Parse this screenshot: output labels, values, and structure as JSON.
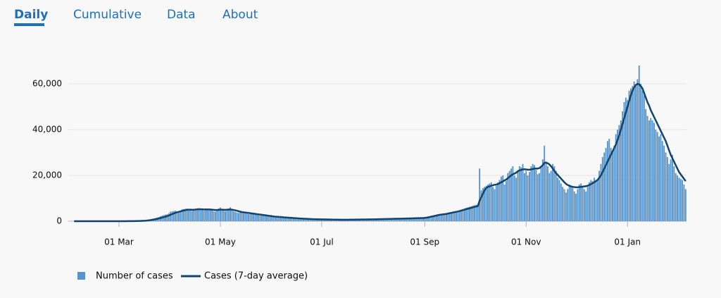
{
  "tabs": [
    "Daily",
    "Cumulative",
    "Data",
    "About"
  ],
  "chart_data": {
    "type": "bar-line",
    "categories": [
      null,
      null,
      null,
      null,
      null,
      null,
      null,
      null,
      null,
      null,
      null,
      null,
      null,
      null,
      null,
      null,
      null,
      null,
      null,
      null,
      null,
      null,
      null,
      null,
      null,
      null,
      null,
      null,
      null,
      null,
      "01 Mar",
      null,
      null,
      null,
      null,
      null,
      null,
      null,
      null,
      null,
      null,
      null,
      null,
      null,
      null,
      null,
      null,
      null,
      null,
      null,
      null,
      null,
      null,
      null,
      null,
      null,
      null,
      null,
      null,
      null,
      null,
      null,
      null,
      null,
      null,
      null,
      null,
      null,
      null,
      null,
      null,
      null,
      null,
      null,
      null,
      null,
      null,
      null,
      null,
      null,
      null,
      null,
      null,
      null,
      null,
      null,
      null,
      null,
      null,
      null,
      null,
      "01 May",
      null,
      null,
      null,
      null,
      null,
      null,
      null,
      null,
      null,
      null,
      null,
      null,
      null,
      null,
      null,
      null,
      null,
      null,
      null,
      null,
      null,
      null,
      null,
      null,
      null,
      null,
      null,
      null,
      null,
      null,
      null,
      null,
      null,
      null,
      null,
      null,
      null,
      null,
      null,
      null,
      null,
      null,
      null,
      null,
      null,
      null,
      null,
      null,
      null,
      null,
      null,
      null,
      null,
      null,
      null,
      null,
      null,
      null,
      null,
      null,
      "01 Jul",
      null,
      null,
      null,
      null,
      null,
      null,
      null,
      null,
      null,
      null,
      null,
      null,
      null,
      null,
      null,
      null,
      null,
      null,
      null,
      null,
      null,
      null,
      null,
      null,
      null,
      null,
      null,
      null,
      null,
      null,
      null,
      null,
      null,
      null,
      null,
      null,
      null,
      null,
      null,
      null,
      null,
      null,
      null,
      null,
      null,
      null,
      null,
      null,
      null,
      null,
      null,
      null,
      null,
      null,
      null,
      null,
      null,
      null,
      null,
      null,
      null,
      "01 Sep",
      null,
      null,
      null,
      null,
      null,
      null,
      null,
      null,
      null,
      null,
      null,
      null,
      null,
      null,
      null,
      null,
      null,
      null,
      null,
      null,
      null,
      null,
      null,
      null,
      null,
      null,
      null,
      null,
      null,
      null,
      null,
      null,
      null,
      null,
      null,
      null,
      null,
      null,
      null,
      null,
      null,
      null,
      null,
      null,
      null,
      null,
      null,
      null,
      null,
      null,
      null,
      null,
      null,
      null,
      null,
      null,
      null,
      null,
      null,
      null,
      "01 Nov",
      null,
      null,
      null,
      null,
      null,
      null,
      null,
      null,
      null,
      null,
      null,
      null,
      null,
      null,
      null,
      null,
      null,
      null,
      null,
      null,
      null,
      null,
      null,
      null,
      null,
      null,
      null,
      null,
      null,
      null,
      null,
      null,
      null,
      null,
      null,
      null,
      null,
      null,
      null,
      null,
      null,
      null,
      null,
      null,
      null,
      null,
      null,
      null,
      null,
      null,
      null,
      null,
      null,
      null,
      null,
      null,
      null,
      null,
      null,
      null,
      "01 Jan",
      null,
      null,
      null,
      null,
      null,
      null,
      null,
      null,
      null,
      null,
      null,
      null,
      null,
      null,
      null,
      null,
      null,
      null,
      null,
      null,
      null,
      null,
      null,
      null,
      null,
      null,
      null,
      null,
      null,
      null,
      null,
      null,
      null,
      null,
      null
    ],
    "series": [
      {
        "name": "Number of cases",
        "color": "#5694ca",
        "kind": "bar",
        "values": [
          2,
          0,
          0,
          0,
          0,
          0,
          0,
          1,
          0,
          0,
          0,
          1,
          0,
          0,
          0,
          0,
          0,
          0,
          0,
          0,
          0,
          0,
          0,
          0,
          3,
          5,
          2,
          5,
          4,
          15,
          12,
          11,
          33,
          39,
          56,
          49,
          68,
          58,
          58,
          59,
          92,
          127,
          228,
          242,
          197,
          304,
          444,
          494,
          720,
          875,
          1043,
          1225,
          1412,
          1601,
          1843,
          2175,
          2460,
          2660,
          2917,
          3020,
          3437,
          4150,
          4340,
          4420,
          4620,
          4280,
          4110,
          4650,
          5200,
          5300,
          5430,
          5500,
          5260,
          4770,
          4540,
          4900,
          5300,
          5530,
          5710,
          5340,
          5120,
          4650,
          5100,
          5320,
          5420,
          5160,
          5000,
          4330,
          4180,
          4980,
          5620,
          6000,
          5300,
          4600,
          4400,
          5450,
          5600,
          6100,
          5200,
          4300,
          4000,
          3800,
          3600,
          4200,
          4300,
          3900,
          3600,
          3300,
          3100,
          3200,
          3500,
          3400,
          3100,
          2900,
          2700,
          2500,
          2800,
          2900,
          2600,
          2300,
          2100,
          2200,
          2100,
          2000,
          1900,
          1800,
          1900,
          1800,
          1700,
          1600,
          1500,
          1600,
          1500,
          1400,
          1300,
          1300,
          1350,
          1250,
          1200,
          1150,
          1100,
          1050,
          1100,
          1000,
          950,
          900,
          950,
          900,
          880,
          850,
          850,
          820,
          800,
          780,
          760,
          740,
          750,
          720,
          700,
          690,
          680,
          670,
          690,
          650,
          640,
          650,
          660,
          670,
          680,
          690,
          700,
          710,
          720,
          730,
          740,
          750,
          760,
          770,
          780,
          790,
          800,
          810,
          820,
          830,
          850,
          870,
          880,
          900,
          920,
          940,
          960,
          980,
          1000,
          1020,
          1030,
          1050,
          1070,
          1080,
          1100,
          1120,
          1140,
          1160,
          1180,
          1200,
          1220,
          1240,
          1260,
          1280,
          1300,
          1320,
          1340,
          1360,
          1380,
          1400,
          1500,
          1700,
          1900,
          2100,
          2300,
          2500,
          2700,
          2800,
          2900,
          3000,
          3100,
          3200,
          3350,
          3500,
          3650,
          3800,
          3900,
          4000,
          4200,
          4400,
          4600,
          4800,
          5000,
          5300,
          5600,
          5900,
          6100,
          6300,
          6500,
          6800,
          7000,
          7200,
          7400,
          23000,
          13500,
          14500,
          15000,
          15500,
          16000,
          16500,
          17000,
          15000,
          14000,
          15500,
          17000,
          18000,
          19500,
          20000,
          16000,
          17500,
          21000,
          22000,
          23000,
          24000,
          20000,
          19000,
          22000,
          24000,
          23500,
          25000,
          21000,
          22000,
          20000,
          21500,
          24000,
          25000,
          24500,
          22500,
          20500,
          21000,
          24000,
          27000,
          33000,
          26000,
          24000,
          21000,
          22000,
          25000,
          24000,
          22000,
          19000,
          18000,
          16500,
          15000,
          14000,
          12500,
          14000,
          16000,
          15500,
          14500,
          13000,
          12000,
          14000,
          16000,
          16500,
          15500,
          14000,
          13000,
          15000,
          17000,
          18000,
          17500,
          19000,
          18000,
          18500,
          22000,
          25000,
          28000,
          30000,
          32000,
          35000,
          36000,
          32000,
          30000,
          33000,
          38000,
          40000,
          42000,
          44000,
          48000,
          52000,
          54000,
          53000,
          57000,
          58000,
          59000,
          61000,
          59000,
          62000,
          68000,
          60000,
          57000,
          55000,
          49000,
          46000,
          44000,
          45000,
          44000,
          43000,
          40000,
          39000,
          37000,
          38000,
          35000,
          33000,
          30000,
          28000,
          25000,
          27000,
          29000,
          24000,
          21000,
          20000,
          19000,
          18500,
          18000,
          16000,
          14000
        ]
      },
      {
        "name": "Cases (7-day average)",
        "color": "#12436d",
        "kind": "line",
        "values": [
          null,
          null,
          null,
          0,
          0,
          0,
          0,
          0,
          0,
          0,
          0,
          0,
          0,
          0,
          0,
          0,
          0,
          0,
          0,
          0,
          0,
          0,
          0,
          0,
          1,
          1,
          1,
          2,
          2,
          5,
          6,
          7,
          11,
          15,
          20,
          25,
          38,
          45,
          50,
          55,
          62,
          73,
          102,
          133,
          160,
          198,
          240,
          300,
          380,
          480,
          600,
          720,
          870,
          1030,
          1200,
          1380,
          1580,
          1790,
          2000,
          2230,
          2480,
          2800,
          3100,
          3400,
          3700,
          3900,
          4100,
          4300,
          4500,
          4700,
          4850,
          5000,
          5050,
          5050,
          5000,
          5000,
          5100,
          5200,
          5250,
          5250,
          5200,
          5150,
          5150,
          5150,
          5150,
          5100,
          5050,
          4950,
          4900,
          4900,
          4950,
          5050,
          5050,
          5000,
          4950,
          5000,
          5050,
          5100,
          5050,
          4900,
          4750,
          4550,
          4350,
          4150,
          4000,
          3900,
          3800,
          3700,
          3600,
          3500,
          3400,
          3300,
          3200,
          3100,
          3000,
          2900,
          2800,
          2700,
          2600,
          2500,
          2400,
          2300,
          2200,
          2100,
          2000,
          1950,
          1900,
          1850,
          1800,
          1700,
          1650,
          1600,
          1550,
          1500,
          1450,
          1400,
          1350,
          1300,
          1250,
          1200,
          1150,
          1100,
          1080,
          1050,
          1000,
          960,
          930,
          900,
          880,
          860,
          840,
          820,
          800,
          790,
          770,
          760,
          750,
          740,
          720,
          710,
          700,
          690,
          680,
          670,
          660,
          660,
          660,
          665,
          670,
          680,
          690,
          700,
          710,
          720,
          730,
          740,
          750,
          760,
          770,
          780,
          790,
          800,
          810,
          820,
          840,
          860,
          870,
          890,
          910,
          930,
          950,
          970,
          990,
          1010,
          1020,
          1040,
          1060,
          1070,
          1090,
          1110,
          1130,
          1150,
          1170,
          1190,
          1210,
          1230,
          1250,
          1270,
          1290,
          1310,
          1330,
          1350,
          1370,
          1390,
          1450,
          1550,
          1700,
          1850,
          2000,
          2150,
          2300,
          2500,
          2650,
          2800,
          2900,
          3000,
          3100,
          3200,
          3350,
          3500,
          3650,
          3800,
          3950,
          4100,
          4250,
          4450,
          4650,
          4850,
          5050,
          5250,
          5450,
          5650,
          5850,
          6050,
          6250,
          6450,
          6650,
          9000,
          10500,
          12000,
          13500,
          14500,
          15000,
          15200,
          15500,
          15700,
          15900,
          16000,
          16200,
          16600,
          17000,
          17400,
          17800,
          18200,
          18800,
          19400,
          20000,
          20500,
          20800,
          21200,
          21800,
          22200,
          22400,
          22600,
          22700,
          22600,
          22500,
          22500,
          22600,
          22800,
          23000,
          23000,
          23000,
          23200,
          23800,
          24500,
          25500,
          25600,
          25300,
          24800,
          24000,
          23000,
          22000,
          21000,
          20200,
          19400,
          18600,
          17800,
          17000,
          16300,
          15800,
          15500,
          15200,
          15000,
          14900,
          14800,
          14800,
          14900,
          15000,
          15100,
          15200,
          15300,
          15500,
          15800,
          16200,
          16600,
          17000,
          17500,
          18000,
          19000,
          20000,
          21500,
          23000,
          24500,
          26000,
          27500,
          29000,
          30500,
          32000,
          33500,
          35500,
          37500,
          40000,
          42500,
          45000,
          47500,
          50000,
          52500,
          55000,
          57000,
          58500,
          59500,
          60000,
          59800,
          59000,
          58000,
          56000,
          54000,
          52000,
          50500,
          48500,
          47000,
          45500,
          44000,
          42500,
          41000,
          39500,
          38000,
          36500,
          35000,
          33000,
          31000,
          29000,
          27500,
          26000,
          24500,
          23000,
          21500,
          20500,
          19500,
          18500,
          17500
        ]
      }
    ],
    "ylim": [
      0,
      70000
    ],
    "yticks": [
      0,
      {
        "value": 20000,
        "label": "20,000"
      },
      {
        "value": 40000,
        "label": "40,000"
      },
      {
        "value": 60000,
        "label": "60,000"
      }
    ],
    "grid": true
  }
}
